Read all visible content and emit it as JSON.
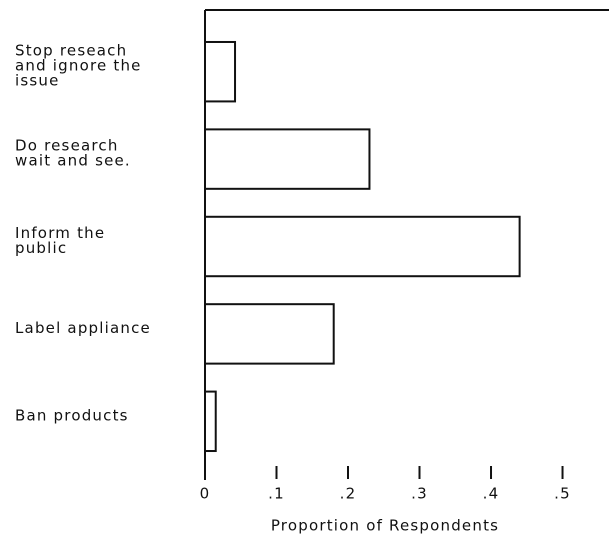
{
  "chart_data": {
    "type": "barh",
    "categories": [
      "Stop reseach\nand ignore the\nissue",
      "Do research\nwait and see.",
      "Inform the\npublic",
      "Label appliance",
      "Ban products"
    ],
    "values": [
      0.042,
      0.23,
      0.44,
      0.18,
      0.015
    ],
    "color": "#ffffff",
    "xlabel": "Proportion of Respondents",
    "xlim": [
      0,
      0.565
    ],
    "xticks": [
      0,
      {
        "value": 0.1,
        "label": ".1"
      },
      {
        "value": 0.2,
        "label": ".2"
      },
      {
        "value": 0.3,
        "label": ".3"
      },
      {
        "value": 0.4,
        "label": ".4"
      },
      {
        "value": 0.5,
        "label": ".5"
      }
    ]
  }
}
